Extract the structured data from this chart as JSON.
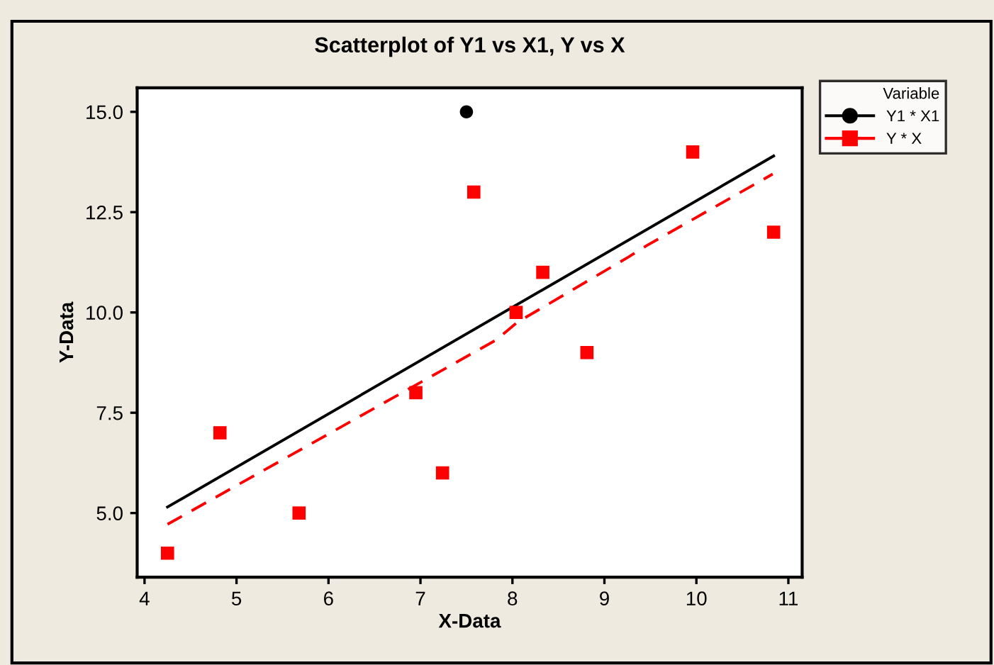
{
  "chart_data": {
    "type": "scatter",
    "title": "Scatterplot of Y1 vs X1, Y vs X",
    "xlabel": "X-Data",
    "ylabel": "Y-Data",
    "legend_title": "Variable",
    "legend": "top right",
    "xlim": [
      3.92,
      11.15
    ],
    "xticks": [
      4,
      5,
      6,
      7,
      8,
      9,
      10,
      11
    ],
    "ylim": [
      3.4,
      15.6
    ],
    "yticks": [
      {
        "value": 5,
        "label": "5.0"
      },
      {
        "value": 7.5,
        "label": "7.5"
      },
      {
        "value": 10,
        "label": "10.0"
      },
      {
        "value": 12.5,
        "label": "12.5"
      },
      {
        "value": 15,
        "label": "15.0"
      }
    ],
    "grid": false,
    "series": [
      {
        "name": "Y1 * X1",
        "color": "#000000",
        "marker": "circle",
        "x": [
          7.5
        ],
        "values": [
          15
        ]
      },
      {
        "name": "Y * X",
        "color": "#ff0000",
        "marker": "square",
        "x": [
          4.25,
          4.82,
          5.68,
          6.95,
          7.24,
          7.58,
          8.04,
          8.33,
          8.81,
          9.96,
          10.84
        ],
        "values": [
          4,
          7,
          5,
          8,
          6,
          13,
          10,
          11,
          9,
          14,
          12
        ]
      },
      {
        "type": "line",
        "color": "#000000",
        "line_style": "solid",
        "x": [
          4.25,
          10.84
        ],
        "values": [
          5.15,
          13.9
        ]
      },
      {
        "type": "line",
        "color": "#ff0000",
        "line_style": "dashed",
        "x": [
          4.25,
          7.82,
          8.05,
          9.26,
          9.47,
          10.83
        ],
        "values": [
          4.72,
          9.31,
          9.75,
          11.38,
          11.68,
          13.45
        ]
      }
    ]
  }
}
